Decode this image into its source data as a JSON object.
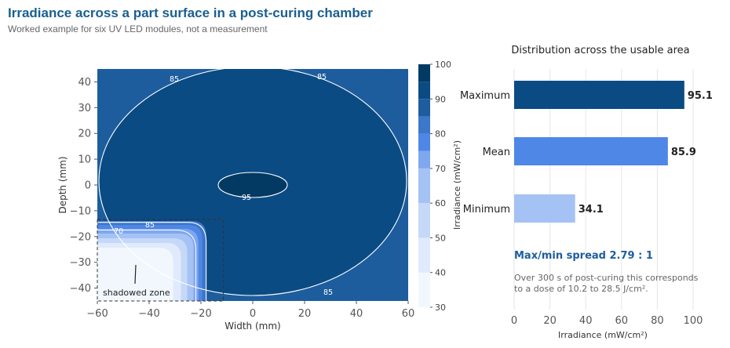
{
  "title": "Irradiance across a part surface in a post-curing chamber",
  "subtitle": "Worked example for six UV LED modules, not a measurement",
  "colors": {
    "title": "#1a5f8f",
    "levels": [
      "#f2f7fe",
      "#dfeafd",
      "#c5d8f8",
      "#a5c2f4",
      "#7ea7ee",
      "#4f87e6",
      "#3d77c9",
      "#1d5d9e",
      "#0b4b83",
      "#033a64"
    ],
    "bar_max": "#0b4b83",
    "bar_mean": "#4f87e6",
    "bar_min": "#a5c2f4",
    "spread": "#1d5d9e"
  },
  "chart_data": [
    {
      "type": "heatmap",
      "subtype": "filled-contour",
      "xlabel": "Width (mm)",
      "ylabel": "Depth (mm)",
      "xlim": [
        -60,
        60
      ],
      "ylim": [
        -45,
        45
      ],
      "xticks": [
        -60,
        -40,
        -20,
        0,
        20,
        40,
        60
      ],
      "yticks": [
        -40,
        -30,
        -20,
        -10,
        0,
        10,
        20,
        30,
        40
      ],
      "colorbar": {
        "label": "Irradiance (mW/cm²)",
        "levels": [
          30,
          40,
          50,
          60,
          70,
          75,
          80,
          85,
          90,
          95,
          100
        ],
        "ticks": [
          30,
          40,
          50,
          60,
          70,
          80,
          90,
          100
        ]
      },
      "contour_labels": [
        "85",
        "85",
        "95",
        "85",
        "85",
        "70"
      ],
      "annotation": "shadowed zone",
      "shadowed_zone": {
        "x": [
          -60,
          -18
        ],
        "y": [
          -45,
          -14
        ]
      }
    },
    {
      "type": "bar",
      "orientation": "horizontal",
      "title": "Distribution across the usable area",
      "categories": [
        "Maximum",
        "Mean",
        "Minimum"
      ],
      "values": [
        95.1,
        85.9,
        34.1
      ],
      "value_labels": [
        "95.1",
        "85.9",
        "34.1"
      ],
      "xlabel": "Irradiance (mW/cm²)",
      "xlim": [
        0,
        100
      ],
      "xticks": [
        0,
        20,
        40,
        60,
        80,
        100
      ]
    }
  ],
  "summary": {
    "spread": "Max/min spread  2.79 : 1",
    "note_line1": "Over 300 s of post-curing this corresponds",
    "note_line2": "to a dose of 10.2 to 28.5 J/cm²."
  }
}
